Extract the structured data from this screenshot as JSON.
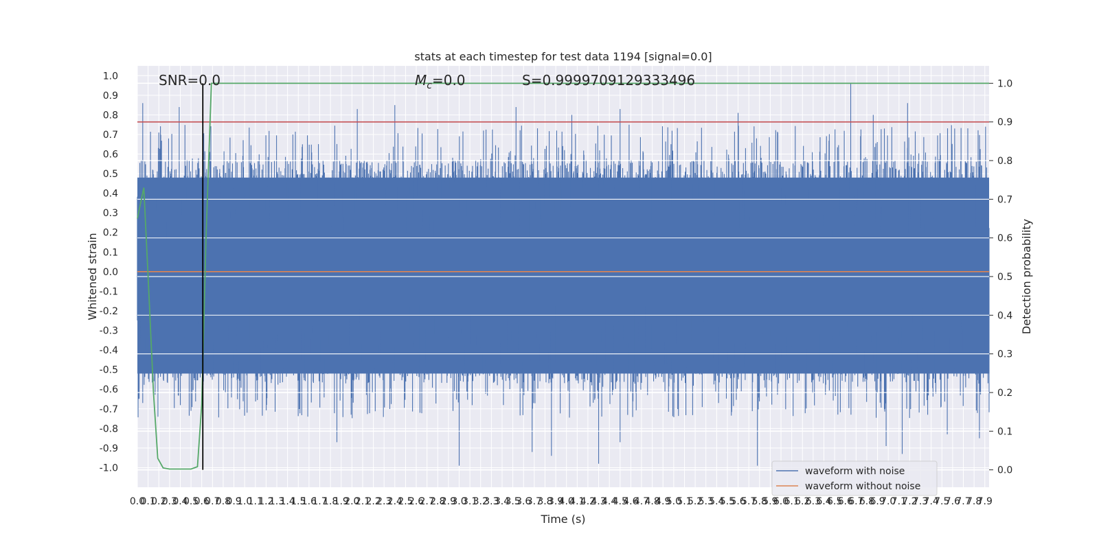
{
  "chart_data": {
    "type": "line",
    "title": "stats at each timestep for test data 1194 [signal=0.0]",
    "xlabel": "Time (s)",
    "ylabel": "Whitened strain",
    "y2label": "Detection probability",
    "xlim": [
      0.0,
      7.94
    ],
    "ylim": [
      -1.1,
      1.05
    ],
    "y2lim": [
      -0.045,
      1.045
    ],
    "x_ticks": [
      "0.0",
      "0.1",
      "0.2",
      "0.3",
      "0.4",
      "0.5",
      "0.6",
      "0.7",
      "0.8",
      "0.9",
      "1.0",
      "1.1",
      "1.2",
      "1.3",
      "1.4",
      "1.5",
      "1.6",
      "1.7",
      "1.8",
      "1.9",
      "2.0",
      "2.1",
      "2.2",
      "2.3",
      "2.4",
      "2.5",
      "2.6",
      "2.7",
      "2.8",
      "2.9",
      "3.0",
      "3.1",
      "3.2",
      "3.3",
      "3.4",
      "3.5",
      "3.6",
      "3.7",
      "3.8",
      "3.9",
      "4.0",
      "4.1",
      "4.2",
      "4.3",
      "4.4",
      "4.5",
      "4.6",
      "4.7",
      "4.8",
      "4.9",
      "5.0",
      "5.1",
      "5.2",
      "5.3",
      "5.4",
      "5.5",
      "5.6",
      "5.7",
      "5.8",
      "5.9",
      "6.0",
      "6.1",
      "6.2",
      "6.3",
      "6.4",
      "6.5",
      "6.6",
      "6.7",
      "6.8",
      "6.9",
      "7.0",
      "7.1",
      "7.2",
      "7.3",
      "7.4",
      "7.5",
      "7.6",
      "7.7",
      "7.8",
      "7.9"
    ],
    "y_ticks": [
      "1.0",
      "0.9",
      "0.8",
      "0.7",
      "0.6",
      "0.5",
      "0.4",
      "0.3",
      "0.2",
      "0.1",
      "0.0",
      "-0.1",
      "-0.2",
      "-0.3",
      "-0.4",
      "-0.5",
      "-0.6",
      "-0.7",
      "-0.8",
      "-0.9",
      "-1.0"
    ],
    "y2_ticks": [
      "1.0",
      "0.9",
      "0.8",
      "0.7",
      "0.6",
      "0.5",
      "0.4",
      "0.3",
      "0.2",
      "0.1",
      "0.0"
    ],
    "series": [
      {
        "name": "waveform with noise",
        "color": "#4c72b0",
        "band_low": -0.52,
        "band_high": 0.48,
        "peaks": [
          [
            0.05,
            0.86
          ],
          [
            0.2,
            0.71
          ],
          [
            0.39,
            0.84
          ],
          [
            2.05,
            0.83
          ],
          [
            2.4,
            0.85
          ],
          [
            3.53,
            0.84
          ],
          [
            4.05,
            0.8
          ],
          [
            4.5,
            0.83
          ],
          [
            5.6,
            0.81
          ],
          [
            6.65,
            0.96
          ],
          [
            6.86,
            0.8
          ],
          [
            7.18,
            0.86
          ]
        ],
        "troughs": [
          [
            0.05,
            -0.67
          ],
          [
            0.5,
            -0.71
          ],
          [
            1.86,
            -0.87
          ],
          [
            3.0,
            -0.99
          ],
          [
            3.68,
            -0.92
          ],
          [
            3.86,
            -0.94
          ],
          [
            4.3,
            -0.98
          ],
          [
            4.5,
            -0.87
          ],
          [
            5.78,
            -0.99
          ],
          [
            6.98,
            -0.89
          ],
          [
            7.13,
            -0.93
          ],
          [
            7.55,
            -0.83
          ],
          [
            7.85,
            -0.85
          ]
        ]
      },
      {
        "name": "waveform without noise",
        "color": "#dd8452",
        "x": [
          0.0,
          7.94
        ],
        "y": [
          0.0,
          0.0
        ]
      },
      {
        "name": "",
        "color": "#55a868",
        "axis": "right",
        "x": [
          0.0,
          0.06,
          0.1,
          0.15,
          0.19,
          0.24,
          0.3,
          0.4,
          0.5,
          0.56,
          0.6,
          0.64,
          0.69,
          0.75,
          1.5,
          3.0,
          5.0,
          7.94
        ],
        "y": [
          0.65,
          0.73,
          0.5,
          0.2,
          0.03,
          0.005,
          0.002,
          0.002,
          0.002,
          0.008,
          0.17,
          0.6,
          1.0,
          1.0,
          1.0,
          1.0,
          1.0,
          1.0
        ]
      }
    ],
    "threshold_line": {
      "value": 0.9,
      "axis": "right",
      "color": "#c44e52"
    },
    "vertical_line": {
      "x": 0.61,
      "color": "#000000"
    },
    "annotations": {
      "snr": "SNR=0.0",
      "mc_symbol": "M",
      "mc_sub": "c",
      "mc_value": "=0.0",
      "s": "S=0.9999709129333496"
    },
    "legend": {
      "placement": "lower right",
      "items": [
        "waveform with noise",
        "waveform without noise"
      ]
    },
    "grid": true,
    "background": "#eaeaf2"
  }
}
